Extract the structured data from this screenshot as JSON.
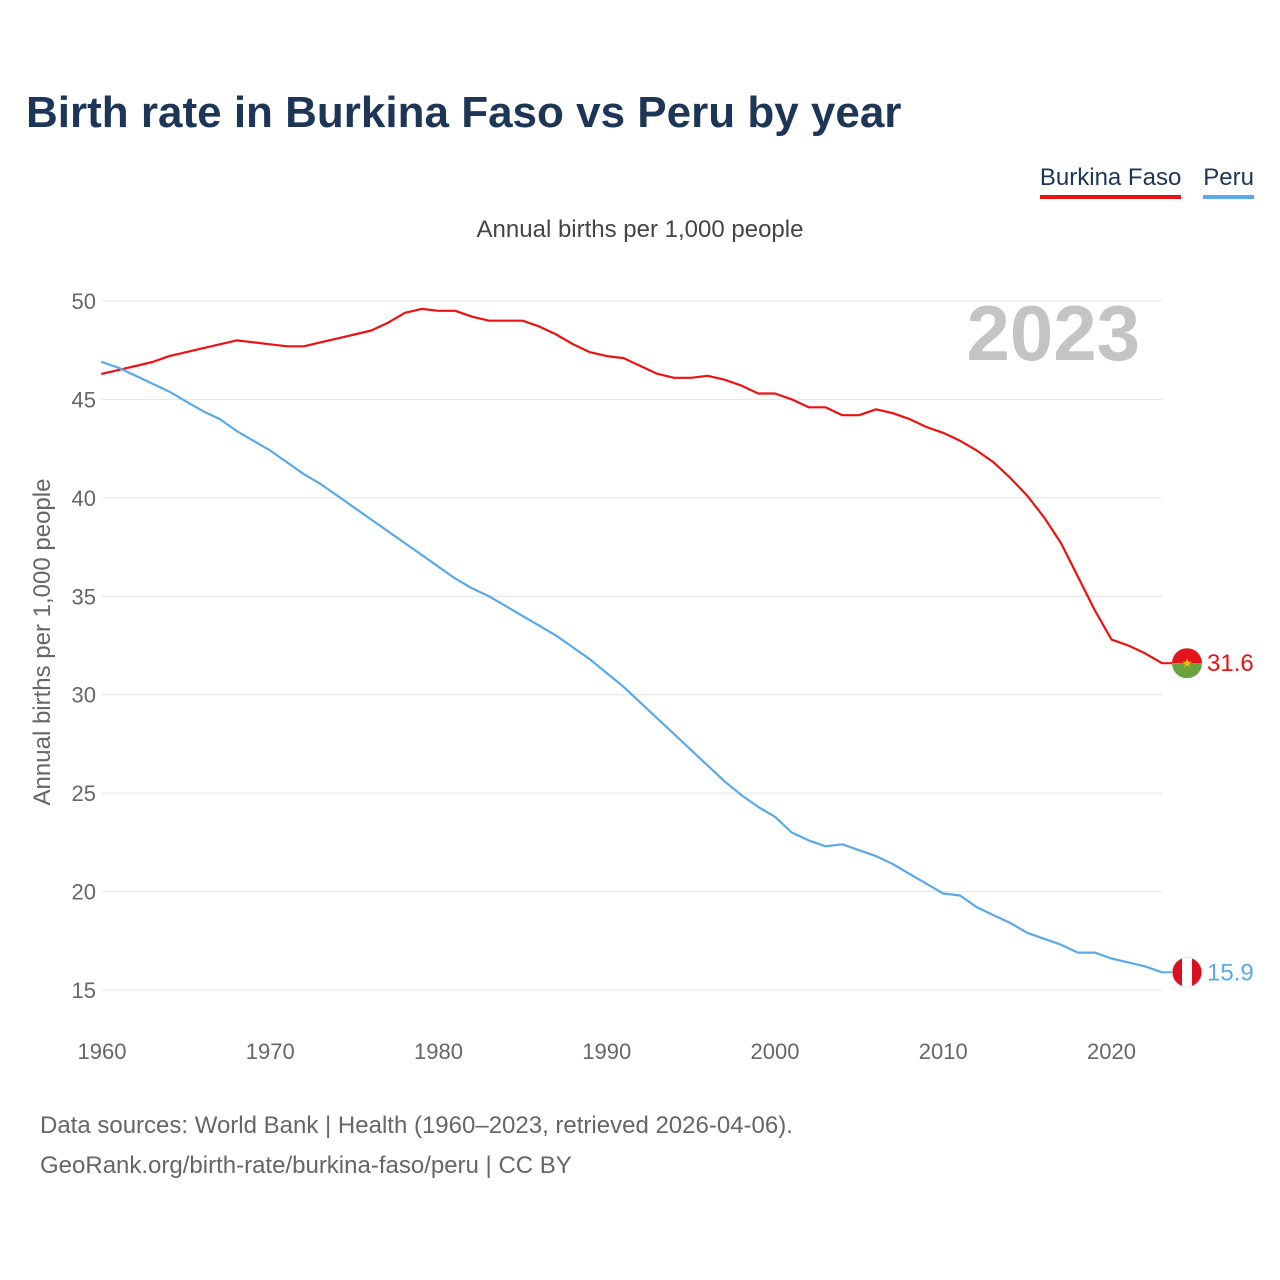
{
  "header": {
    "title": "Birth rate in Burkina Faso vs Peru by year",
    "subtitle": "Annual births per 1,000 people"
  },
  "legend": [
    {
      "label": "Burkina Faso",
      "color": "#ee1111"
    },
    {
      "label": "Peru",
      "color": "#5aa9e8"
    }
  ],
  "chart_data": {
    "type": "line",
    "title": "Birth rate in Burkina Faso vs Peru by year",
    "ylabel": "Annual births per 1,000 people",
    "xlabel": "",
    "xlim": [
      1960,
      2023
    ],
    "ylim": [
      15,
      50
    ],
    "x_ticks": [
      1960,
      1970,
      1980,
      1990,
      2000,
      2010,
      2020
    ],
    "y_ticks": [
      15,
      20,
      25,
      30,
      35,
      40,
      45,
      50
    ],
    "year_watermark": "2023",
    "x": [
      1960,
      1961,
      1962,
      1963,
      1964,
      1965,
      1966,
      1967,
      1968,
      1969,
      1970,
      1971,
      1972,
      1973,
      1974,
      1975,
      1976,
      1977,
      1978,
      1979,
      1980,
      1981,
      1982,
      1983,
      1984,
      1985,
      1986,
      1987,
      1988,
      1989,
      1990,
      1991,
      1992,
      1993,
      1994,
      1995,
      1996,
      1997,
      1998,
      1999,
      2000,
      2001,
      2002,
      2003,
      2004,
      2005,
      2006,
      2007,
      2008,
      2009,
      2010,
      2011,
      2012,
      2013,
      2014,
      2015,
      2016,
      2017,
      2018,
      2019,
      2020,
      2021,
      2022,
      2023
    ],
    "series": [
      {
        "name": "Burkina Faso",
        "color": "#ee1111",
        "end_label": "31.6",
        "values": [
          46.3,
          46.5,
          46.7,
          46.9,
          47.2,
          47.4,
          47.6,
          47.8,
          48.0,
          47.9,
          47.8,
          47.7,
          47.7,
          47.9,
          48.1,
          48.3,
          48.5,
          48.9,
          49.4,
          49.6,
          49.5,
          49.5,
          49.2,
          49.0,
          49.0,
          49.0,
          48.7,
          48.3,
          47.8,
          47.4,
          47.2,
          47.1,
          46.7,
          46.3,
          46.1,
          46.1,
          46.2,
          46.0,
          45.7,
          45.3,
          45.3,
          45.0,
          44.6,
          44.6,
          44.2,
          44.2,
          44.5,
          44.3,
          44.0,
          43.6,
          43.3,
          42.9,
          42.4,
          41.8,
          41.0,
          40.1,
          39.0,
          37.7,
          36.0,
          34.3,
          32.8,
          32.5,
          32.1,
          31.6
        ]
      },
      {
        "name": "Peru",
        "color": "#5aa9e8",
        "end_label": "15.9",
        "values": [
          46.9,
          46.6,
          46.2,
          45.8,
          45.4,
          44.9,
          44.4,
          44.0,
          43.4,
          42.9,
          42.4,
          41.8,
          41.2,
          40.7,
          40.1,
          39.5,
          38.9,
          38.3,
          37.7,
          37.1,
          36.5,
          35.9,
          35.4,
          35.0,
          34.5,
          34.0,
          33.5,
          33.0,
          32.4,
          31.8,
          31.1,
          30.4,
          29.6,
          28.8,
          28.0,
          27.2,
          26.4,
          25.6,
          24.9,
          24.3,
          23.8,
          23.0,
          22.6,
          22.3,
          22.4,
          22.1,
          21.8,
          21.4,
          20.9,
          20.4,
          19.9,
          19.8,
          19.2,
          18.8,
          18.4,
          17.9,
          17.6,
          17.3,
          16.9,
          16.9,
          16.6,
          16.4,
          16.2,
          15.9
        ]
      }
    ]
  },
  "source": {
    "line1": "Data sources: World Bank | Health (1960–2023, retrieved 2026-04-06).",
    "line2": "GeoRank.org/birth-rate/burkina-faso/peru | CC BY"
  }
}
